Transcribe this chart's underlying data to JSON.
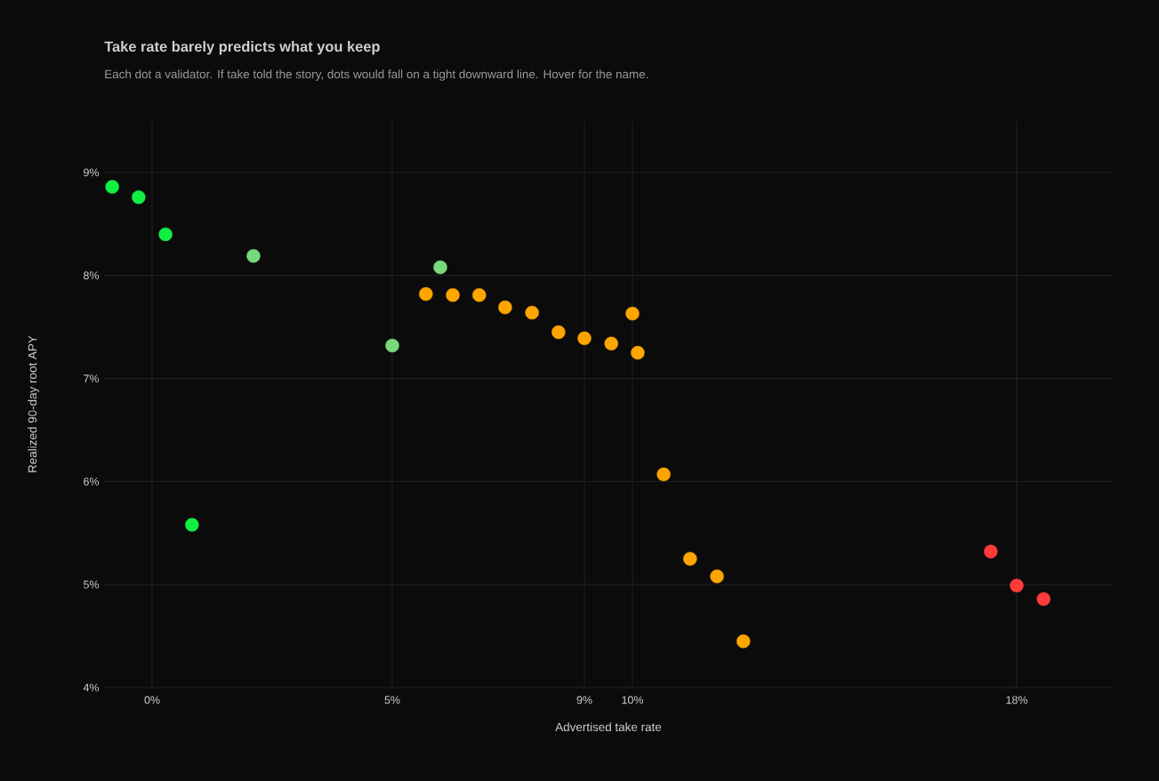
{
  "chart_data": {
    "type": "scatter",
    "title": "Take rate barely predicts what you keep",
    "subtitle": "Each dot a validator. If take told the story, dots would fall on a tight downward line. Hover for the name.",
    "xlabel": "Advertised take rate",
    "ylabel": "Realized 90-day root APY",
    "xlim": [
      -1.0,
      20.0
    ],
    "ylim": [
      4,
      9.5
    ],
    "xticks": [
      {
        "value": 0,
        "label": "0%"
      },
      {
        "value": 5,
        "label": "5%"
      },
      {
        "value": 9,
        "label": "9%"
      },
      {
        "value": 10,
        "label": "10%"
      },
      {
        "value": 18,
        "label": "18%"
      }
    ],
    "yticks": [
      {
        "value": 4,
        "label": "4%"
      },
      {
        "value": 5,
        "label": "5%"
      },
      {
        "value": 6,
        "label": "6%"
      },
      {
        "value": 7,
        "label": "7%"
      },
      {
        "value": 8,
        "label": "8%"
      },
      {
        "value": 9,
        "label": "9%"
      }
    ],
    "grid": true,
    "series": [
      {
        "color": "#11ee44",
        "x": [
          -0.83,
          -0.28,
          0.28,
          0.83
        ],
        "values": [
          8.86,
          8.76,
          8.4,
          5.58
        ]
      },
      {
        "color": "#77d97a",
        "x": [
          2.11,
          5.0,
          6.0
        ],
        "values": [
          8.19,
          7.32,
          8.08
        ]
      },
      {
        "color": "#ffa500",
        "x": [
          5.7,
          6.26,
          6.81,
          7.35,
          7.91,
          8.46,
          9.0,
          9.56,
          10.0,
          10.11,
          10.65,
          11.2,
          11.76,
          12.31
        ],
        "values": [
          7.82,
          7.81,
          7.81,
          7.69,
          7.64,
          7.45,
          7.39,
          7.34,
          7.63,
          7.25,
          6.07,
          5.25,
          5.08,
          4.45
        ]
      },
      {
        "color": "#ff3b3b",
        "x": [
          17.46,
          18.0,
          18.56
        ],
        "values": [
          5.32,
          4.99,
          4.86
        ]
      }
    ]
  }
}
